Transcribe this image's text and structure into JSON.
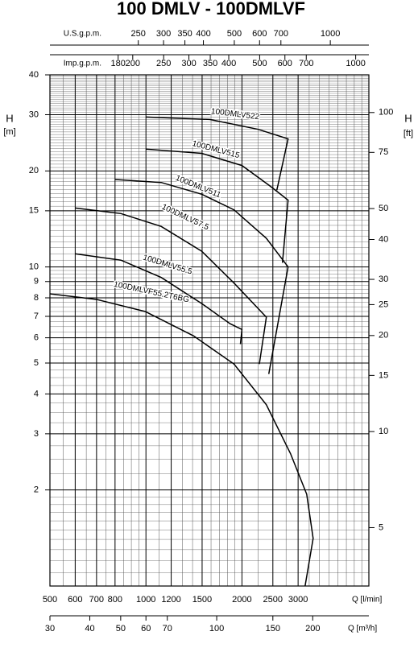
{
  "chart_data": {
    "type": "line",
    "title": "100 DMLV - 100DMLVF",
    "log_x": true,
    "log_y": true,
    "grid": true,
    "x_label": "Q [l/min]",
    "xlim": [
      500,
      5000
    ],
    "xticks": [
      500,
      600,
      700,
      800,
      1000,
      1200,
      1500,
      2000,
      2500,
      3000
    ],
    "y_label": "H",
    "y_unit": "[m]",
    "ylim": [
      1,
      40
    ],
    "yticks": [
      2,
      3,
      4,
      5,
      6,
      7,
      8,
      9,
      10,
      15,
      20,
      30,
      40
    ],
    "y2_label": "H",
    "y2_unit": "[ft]",
    "y2lim": [
      3.2808,
      131.23
    ],
    "y2ticks": [
      5,
      10,
      15,
      20,
      25,
      30,
      40,
      50,
      75,
      100
    ],
    "extra_x_axes": [
      {
        "label": "U.S.g.p.m.",
        "position": "top",
        "lim": [
          132.1,
          1321
        ],
        "ticks": [
          250,
          300,
          350,
          400,
          500,
          600,
          700,
          1000
        ]
      },
      {
        "label": "Imp.g.p.m.",
        "position": "top",
        "lim": [
          110,
          1100
        ],
        "ticks": [
          180,
          200,
          250,
          300,
          350,
          400,
          500,
          600,
          700,
          1000
        ]
      },
      {
        "label": "Q [m³/h]",
        "position": "bottom",
        "lim": [
          30,
          300
        ],
        "ticks": [
          30,
          40,
          50,
          60,
          70,
          100,
          150,
          200
        ]
      }
    ],
    "series": [
      {
        "name": "100DMLV522",
        "color": "#000000",
        "x": [
          1000,
          1585,
          2250,
          2790,
          2572
        ],
        "values": [
          29.5,
          29.0,
          27.0,
          25.2,
          17.4
        ]
      },
      {
        "name": "100DMLV515",
        "color": "#000000",
        "x": [
          1000,
          1496,
          2000,
          2456,
          2790,
          2680
        ],
        "values": [
          23.4,
          22.7,
          20.8,
          17.9,
          16.2,
          10.3
        ]
      },
      {
        "name": "100DMLV511",
        "color": "#000000",
        "x": [
          801,
          1117,
          1496,
          1889,
          2385,
          2790,
          2427
        ],
        "values": [
          18.8,
          18.4,
          16.9,
          15.1,
          12.3,
          10.0,
          4.62
        ]
      },
      {
        "name": "100DMLV57.5",
        "color": "#000000",
        "x": [
          599,
          835,
          1117,
          1496,
          1889,
          2385,
          2268
        ],
        "values": [
          15.3,
          14.7,
          13.4,
          11.2,
          8.9,
          6.96,
          4.96
        ]
      },
      {
        "name": "100DMLV55.5",
        "color": "#000000",
        "x": [
          599,
          835,
          1117,
          1496,
          1835,
          2000,
          1978
        ],
        "values": [
          11.0,
          10.5,
          9.27,
          7.68,
          6.64,
          6.37,
          5.73
        ]
      },
      {
        "name": "100DMLVF55.2T6BG",
        "color": "#000000",
        "x": [
          500,
          701,
          995,
          1411,
          1889,
          2385,
          2840,
          3192,
          3343,
          3155
        ],
        "values": [
          8.24,
          7.91,
          7.25,
          6.08,
          4.96,
          3.7,
          2.6,
          1.94,
          1.41,
          1.0
        ]
      }
    ]
  }
}
